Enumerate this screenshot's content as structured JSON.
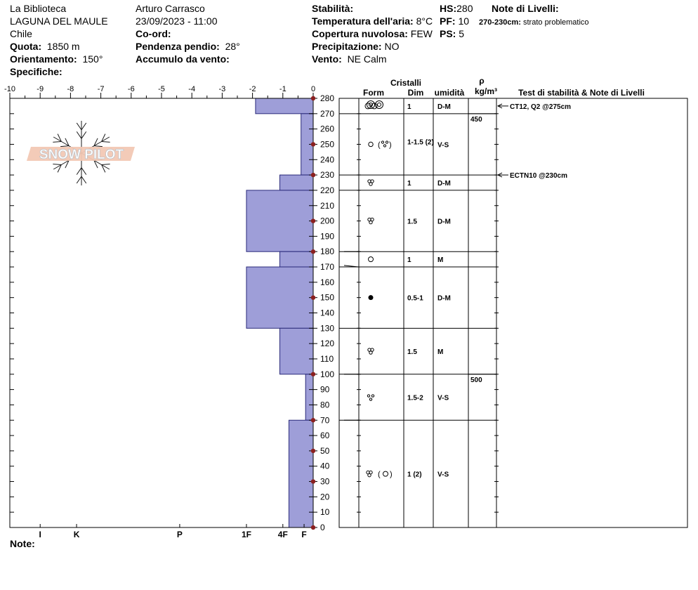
{
  "header": {
    "site": "La Biblioteca",
    "location": "LAGUNA DEL MAULE",
    "country": "Chile",
    "elevation_label": "Quota:",
    "elevation_value": "1850 m",
    "aspect_label": "Orientamento:",
    "aspect_value": "150°",
    "specifics_label": "Specifiche:",
    "observer": "Arturo Carrasco",
    "datetime": "23/09/2023 - 11:00",
    "coords_label": "Co-ord:",
    "slope_label": "Pendenza pendio:",
    "slope_value": "28°",
    "wind_loading_label": "Accumulo da vento:",
    "stability_label": "Stabilità:",
    "air_temp_label": "Temperatura dell'aria:",
    "air_temp_value": "8°C",
    "sky_label": "Copertura nuvolosa:",
    "sky_value": "FEW",
    "precip_label": "Precipitazione:",
    "precip_value": "NO",
    "wind_label": "Vento:",
    "wind_value": "NE Calm",
    "hs_label": "HS:",
    "hs_value": "280",
    "pf_label": "PF:",
    "pf_value": "10",
    "ps_label": "PS:",
    "ps_value": "5",
    "layer_notes_label": "Note di Livelli:",
    "layer_note_range": "270-230cm:",
    "layer_note_text": "strato problematico"
  },
  "footer": {
    "notes_label": "Note:"
  },
  "logo": {
    "text": "SNOW PILOT"
  },
  "table_headers": {
    "crystals": "Cristalli",
    "form": "Form",
    "size": "Dim",
    "moisture": "umidità",
    "rho": "ρ",
    "density_unit": "kg/m³",
    "tests": "Test di stabilità & Note di Livelli"
  },
  "chart_data": {
    "type": "bar",
    "orientation": "horizontal",
    "x_ticks": [
      "-10",
      "-9",
      "-8",
      "-7",
      "-6",
      "-5",
      "-4",
      "-3",
      "-2",
      "-1",
      "0"
    ],
    "xlim": [
      -10,
      0
    ],
    "ylim": [
      0,
      280
    ],
    "y_ticks": [
      "0",
      "10",
      "20",
      "30",
      "40",
      "50",
      "60",
      "70",
      "80",
      "90",
      "100",
      "110",
      "120",
      "130",
      "140",
      "150",
      "160",
      "170",
      "180",
      "190",
      "200",
      "210",
      "220",
      "230",
      "240",
      "250",
      "260",
      "270",
      "280"
    ],
    "hardness_labels": [
      {
        "label": "I",
        "value": -9.0
      },
      {
        "label": "K",
        "value": -7.8
      },
      {
        "label": "P",
        "value": -4.4
      },
      {
        "label": "1F",
        "value": -2.2
      },
      {
        "label": "4F",
        "value": -1.0
      },
      {
        "label": "F",
        "value": -0.3
      }
    ],
    "hardness_layers": [
      {
        "bottom": 270,
        "top": 280,
        "value": -1.9
      },
      {
        "bottom": 230,
        "top": 270,
        "value": -0.4
      },
      {
        "bottom": 220,
        "top": 230,
        "value": -1.1
      },
      {
        "bottom": 180,
        "top": 220,
        "value": -2.2
      },
      {
        "bottom": 170,
        "top": 180,
        "value": -1.1
      },
      {
        "bottom": 130,
        "top": 170,
        "value": -2.2
      },
      {
        "bottom": 100,
        "top": 130,
        "value": -1.1
      },
      {
        "bottom": 70,
        "top": 100,
        "value": -0.25
      },
      {
        "bottom": 0,
        "top": 70,
        "value": -0.8
      }
    ],
    "temperature_points": [
      280,
      250,
      230,
      200,
      180,
      150,
      100,
      70,
      50,
      30,
      0
    ],
    "layers": [
      {
        "top": 280,
        "bottom": 270,
        "form": "rounds",
        "size": "1",
        "moisture": "D-M"
      },
      {
        "top": 270,
        "bottom": 230,
        "form": "round-facet",
        "size": "1-1.5 (2)",
        "moisture": "V-S"
      },
      {
        "top": 230,
        "bottom": 220,
        "form": "melt",
        "size": "1",
        "moisture": "D-M"
      },
      {
        "top": 220,
        "bottom": 180,
        "form": "melt",
        "size": "1.5",
        "moisture": "D-M"
      },
      {
        "top": 180,
        "bottom": 170,
        "form": "round",
        "size": "1",
        "moisture": "M"
      },
      {
        "top": 170,
        "bottom": 130,
        "form": "ice",
        "size": "0.5-1",
        "moisture": "D-M"
      },
      {
        "top": 130,
        "bottom": 100,
        "form": "melt",
        "size": "1.5",
        "moisture": "M"
      },
      {
        "top": 100,
        "bottom": 70,
        "form": "facet",
        "size": "1.5-2",
        "moisture": "V-S"
      },
      {
        "top": 70,
        "bottom": 0,
        "form": "melt-round",
        "size": "1 (2)",
        "moisture": "V-S"
      }
    ],
    "densities": [
      {
        "depth": 270,
        "value": "450"
      },
      {
        "depth": 100,
        "value": "500"
      }
    ],
    "tests": [
      {
        "depth": 275,
        "text": "CT12, Q2 @275cm"
      },
      {
        "depth": 230,
        "text": "ECTN10 @230cm"
      }
    ]
  }
}
